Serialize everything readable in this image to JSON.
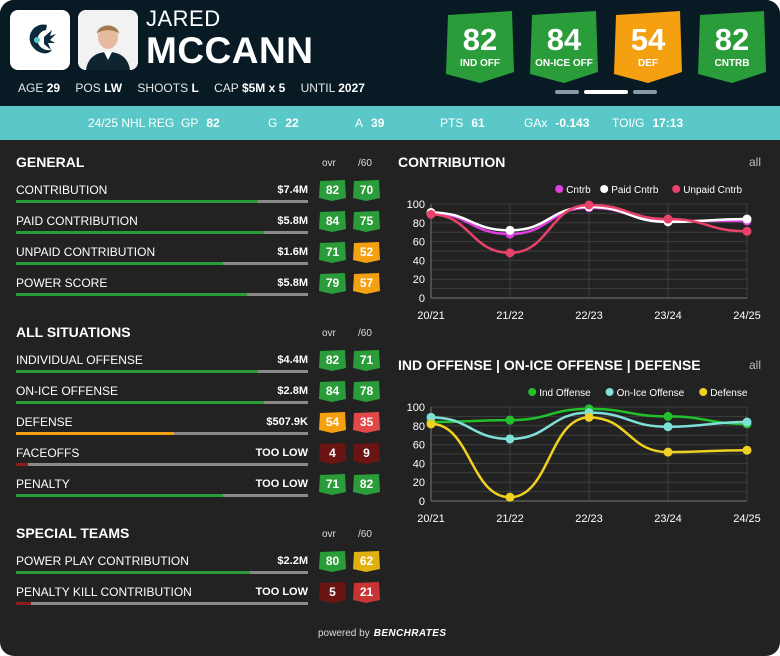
{
  "player": {
    "first_name": "JARED",
    "last_name": "MCCANN",
    "age_label": "AGE",
    "age": "29",
    "pos_label": "POS",
    "pos": "LW",
    "shoots_label": "SHOOTS",
    "shoots": "L",
    "cap_label": "CAP",
    "cap": "$5M x 5",
    "until_label": "UNTIL",
    "until": "2027"
  },
  "icons": {
    "team_logo": "kraken-logo-icon",
    "photo": "player-photo"
  },
  "badges": [
    {
      "value": "82",
      "label": "IND OFF",
      "color": "#2a9d3a"
    },
    {
      "value": "84",
      "label": "ON-ICE OFF",
      "color": "#2a9d3a"
    },
    {
      "value": "54",
      "label": "DEF",
      "color": "#f5a011"
    },
    {
      "value": "82",
      "label": "CNTRB",
      "color": "#2a9d3a"
    }
  ],
  "season_stats": {
    "season": "24/25 NHL REG",
    "gp_label": "GP",
    "gp": "82",
    "g_label": "G",
    "g": "22",
    "a_label": "A",
    "a": "39",
    "pts_label": "PTS",
    "pts": "61",
    "gax_label": "GAx",
    "gax": "-0.143",
    "toi_label": "TOI/G",
    "toi": "17:13"
  },
  "columns": {
    "ovr": "ovr",
    "per60": "/60"
  },
  "sections": [
    {
      "title": "GENERAL",
      "rows": [
        {
          "label": "CONTRIBUTION",
          "value": "$7.4M",
          "fill": 0.83,
          "fill_color": "#2a9d3a",
          "ovr": "82",
          "ovr_color": "#2a9d3a",
          "p60": "70",
          "p60_color": "#2a9d3a"
        },
        {
          "label": "PAID CONTRIBUTION",
          "value": "$5.8M",
          "fill": 0.85,
          "fill_color": "#2a9d3a",
          "ovr": "84",
          "ovr_color": "#2a9d3a",
          "p60": "75",
          "p60_color": "#2a9d3a"
        },
        {
          "label": "UNPAID CONTRIBUTION",
          "value": "$1.6M",
          "fill": 0.71,
          "fill_color": "#2a9d3a",
          "ovr": "71",
          "ovr_color": "#2a9d3a",
          "p60": "52",
          "p60_color": "#f5a011"
        },
        {
          "label": "POWER SCORE",
          "value": "$5.8M",
          "fill": 0.79,
          "fill_color": "#2a9d3a",
          "ovr": "79",
          "ovr_color": "#2a9d3a",
          "p60": "57",
          "p60_color": "#f5a011"
        }
      ]
    },
    {
      "title": "ALL SITUATIONS",
      "rows": [
        {
          "label": "INDIVIDUAL OFFENSE",
          "value": "$4.4M",
          "fill": 0.83,
          "fill_color": "#2a9d3a",
          "ovr": "82",
          "ovr_color": "#2a9d3a",
          "p60": "71",
          "p60_color": "#2a9d3a"
        },
        {
          "label": "ON-ICE OFFENSE",
          "value": "$2.8M",
          "fill": 0.85,
          "fill_color": "#2a9d3a",
          "ovr": "84",
          "ovr_color": "#2a9d3a",
          "p60": "78",
          "p60_color": "#2a9d3a"
        },
        {
          "label": "DEFENSE",
          "value": "$507.9K",
          "fill": 0.54,
          "fill_color": "#f5a011",
          "ovr": "54",
          "ovr_color": "#f5a011",
          "p60": "35",
          "p60_color": "#e24848"
        },
        {
          "label": "FACEOFFS",
          "value": "TOO LOW",
          "fill": 0.04,
          "fill_color": "#8b1c1c",
          "ovr": "4",
          "ovr_color": "#6b1414",
          "p60": "9",
          "p60_color": "#6b1414"
        },
        {
          "label": "PENALTY",
          "value": "TOO LOW",
          "fill": 0.71,
          "fill_color": "#2a9d3a",
          "ovr": "71",
          "ovr_color": "#2a9d3a",
          "p60": "82",
          "p60_color": "#2a9d3a"
        }
      ]
    },
    {
      "title": "SPECIAL TEAMS",
      "rows": [
        {
          "label": "POWER PLAY CONTRIBUTION",
          "value": "$2.2M",
          "fill": 0.8,
          "fill_color": "#2a9d3a",
          "ovr": "80",
          "ovr_color": "#2a9d3a",
          "p60": "62",
          "p60_color": "#e0b010"
        },
        {
          "label": "PENALTY KILL CONTRIBUTION",
          "value": "TOO LOW",
          "fill": 0.05,
          "fill_color": "#8b1c1c",
          "ovr": "5",
          "ovr_color": "#6b1414",
          "p60": "21",
          "p60_color": "#c83434"
        }
      ]
    }
  ],
  "chart_data": [
    {
      "type": "line",
      "title": "CONTRIBUTION",
      "link": "all",
      "x": [
        "20/21",
        "21/22",
        "22/23",
        "23/24",
        "24/25"
      ],
      "ylim": [
        0,
        100
      ],
      "yticks": [
        "0",
        "10",
        "20",
        "30",
        "40",
        "50",
        "60",
        "70",
        "80",
        "90",
        "100"
      ],
      "grid": true,
      "legend": "top-right",
      "series": [
        {
          "name": "Cntrb",
          "color": "#e040e0",
          "values": [
            90,
            68,
            96,
            82,
            82
          ]
        },
        {
          "name": "Paid Cntrb",
          "color": "#ffffff",
          "values": [
            91,
            72,
            97,
            81,
            84
          ]
        },
        {
          "name": "Unpaid Cntrb",
          "color": "#e8426a",
          "values": [
            89,
            48,
            99,
            84,
            71
          ]
        }
      ]
    },
    {
      "type": "line",
      "title": "IND OFFENSE | ON-ICE OFFENSE | DEFENSE",
      "link": "all",
      "x": [
        "20/21",
        "21/22",
        "22/23",
        "23/24",
        "24/25"
      ],
      "ylim": [
        0,
        100
      ],
      "yticks": [
        "0",
        "10",
        "20",
        "30",
        "40",
        "50",
        "60",
        "70",
        "80",
        "90",
        "100"
      ],
      "grid": true,
      "legend": "top-right",
      "series": [
        {
          "name": "Ind Offense",
          "color": "#22c02a",
          "values": [
            84,
            86,
            98,
            90,
            82
          ]
        },
        {
          "name": "On-Ice Offense",
          "color": "#7fe0d8",
          "values": [
            89,
            66,
            94,
            79,
            84
          ]
        },
        {
          "name": "Defense",
          "color": "#f0d020",
          "values": [
            82,
            4,
            89,
            52,
            54
          ]
        }
      ]
    }
  ],
  "footer": {
    "powered": "powered by",
    "brand": "BENCHRATES"
  }
}
